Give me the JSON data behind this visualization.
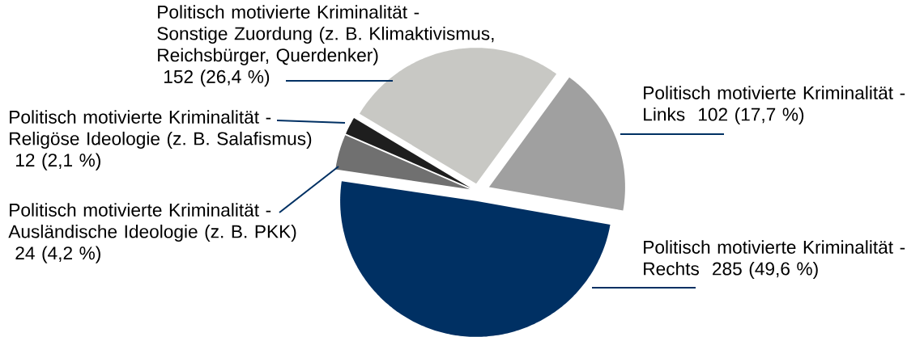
{
  "chart_data": {
    "type": "pie",
    "categories": [
      "Politisch motivierte Kriminalität - Links",
      "Politisch motivierte Kriminalität - Sonstige Zuordung (z. B. Klimaktivismus, Reichsbürger, Querdenker)",
      "Politisch motivierte Kriminalität - Religöse Ideologie (z. B. Salafismus)",
      "Politisch motivierte Kriminalität - Ausländische Ideologie (z. B. PKK)",
      "Politisch motivierte Kriminalität - Rechts"
    ],
    "values": [
      102,
      152,
      12,
      24,
      285
    ],
    "value_labels": [
      "102 (17,7 %)",
      "152 (26,4 %)",
      "12 (2,1 %)",
      "24 (4,2 %)",
      "285 (49,6 %)"
    ],
    "colors": [
      "#a0a0a0",
      "#c8c8c4",
      "#1e1e1e",
      "#707070",
      "#003063"
    ]
  }
}
